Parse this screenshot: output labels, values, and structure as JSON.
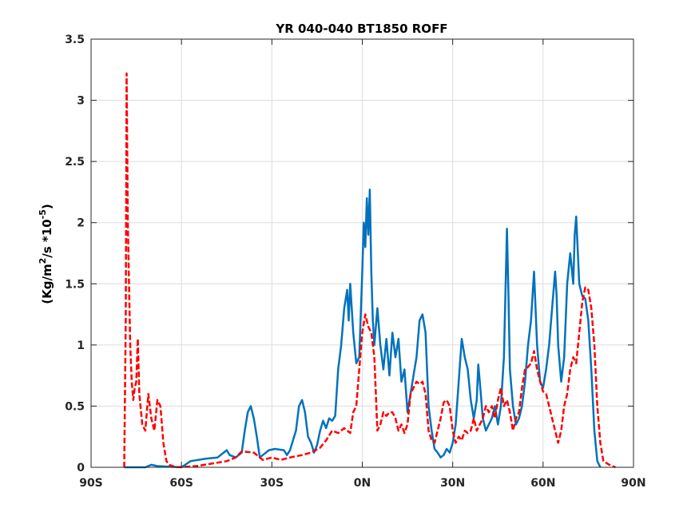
{
  "chart_data": {
    "type": "line",
    "title": "YR 040-040 BT1850 ROFF",
    "ylabel": {
      "pre": "(Kg/m",
      "sup1": "2",
      "mid": "/s   *10",
      "sup2": "-5",
      "post": ")"
    },
    "xlabel": "",
    "xlim": [
      -90,
      90
    ],
    "ylim": [
      0,
      3.5
    ],
    "x_ticks": [
      -90,
      -60,
      -30,
      0,
      30,
      60,
      90
    ],
    "x_tick_labels": [
      "90S",
      "60S",
      "30S",
      "0N",
      "30N",
      "60N",
      "90N"
    ],
    "y_ticks": [
      0,
      0.5,
      1,
      1.5,
      2,
      2.5,
      3,
      3.5
    ],
    "y_tick_labels": [
      "0",
      "0.5",
      "1",
      "1.5",
      "2",
      "2.5",
      "3",
      "3.5"
    ],
    "grid": true,
    "colors": {
      "blue": "#0072BD",
      "red": "#FF0000",
      "grid": "#dcdcdc",
      "axis": "#262626"
    },
    "series": [
      {
        "style": "solid",
        "color": "#0072BD",
        "points": [
          [
            -79,
            0
          ],
          [
            -72,
            0
          ],
          [
            -70,
            0.02
          ],
          [
            -68,
            0.01
          ],
          [
            -60,
            0
          ],
          [
            -57,
            0.05
          ],
          [
            -52,
            0.07
          ],
          [
            -48,
            0.08
          ],
          [
            -46,
            0.12
          ],
          [
            -45,
            0.14
          ],
          [
            -44,
            0.1
          ],
          [
            -42,
            0.08
          ],
          [
            -40,
            0.12
          ],
          [
            -39,
            0.3
          ],
          [
            -38,
            0.45
          ],
          [
            -37,
            0.5
          ],
          [
            -36,
            0.4
          ],
          [
            -35,
            0.25
          ],
          [
            -34,
            0.08
          ],
          [
            -33,
            0.1
          ],
          [
            -31,
            0.14
          ],
          [
            -29,
            0.15
          ],
          [
            -26,
            0.14
          ],
          [
            -25,
            0.1
          ],
          [
            -24,
            0.14
          ],
          [
            -22,
            0.3
          ],
          [
            -21,
            0.5
          ],
          [
            -20,
            0.55
          ],
          [
            -19,
            0.45
          ],
          [
            -18,
            0.25
          ],
          [
            -17,
            0.2
          ],
          [
            -16,
            0.12
          ],
          [
            -15,
            0.18
          ],
          [
            -14,
            0.3
          ],
          [
            -13,
            0.38
          ],
          [
            -12,
            0.32
          ],
          [
            -11,
            0.4
          ],
          [
            -10,
            0.38
          ],
          [
            -9,
            0.42
          ],
          [
            -8,
            0.8
          ],
          [
            -7,
            1.0
          ],
          [
            -6,
            1.3
          ],
          [
            -5,
            1.45
          ],
          [
            -4.5,
            1.2
          ],
          [
            -4,
            1.5
          ],
          [
            -3,
            1.1
          ],
          [
            -2,
            0.85
          ],
          [
            -1,
            0.9
          ],
          [
            0,
            1.6
          ],
          [
            0.5,
            2.0
          ],
          [
            1,
            1.8
          ],
          [
            1.5,
            2.2
          ],
          [
            2,
            1.9
          ],
          [
            2.5,
            2.27
          ],
          [
            3,
            1.6
          ],
          [
            3.5,
            1.2
          ],
          [
            4,
            1.0
          ],
          [
            5,
            1.3
          ],
          [
            6,
            1.0
          ],
          [
            7,
            0.8
          ],
          [
            8,
            1.05
          ],
          [
            9,
            0.75
          ],
          [
            10,
            1.1
          ],
          [
            11,
            0.9
          ],
          [
            12,
            1.05
          ],
          [
            13,
            0.7
          ],
          [
            14,
            0.8
          ],
          [
            15,
            0.45
          ],
          [
            16,
            0.6
          ],
          [
            17,
            0.75
          ],
          [
            18,
            0.9
          ],
          [
            19,
            1.2
          ],
          [
            20,
            1.25
          ],
          [
            21,
            1.1
          ],
          [
            22,
            0.5
          ],
          [
            23,
            0.3
          ],
          [
            24,
            0.15
          ],
          [
            25,
            0.12
          ],
          [
            26,
            0.08
          ],
          [
            27,
            0.1
          ],
          [
            28,
            0.15
          ],
          [
            29,
            0.12
          ],
          [
            30,
            0.2
          ],
          [
            31,
            0.35
          ],
          [
            32,
            0.7
          ],
          [
            33,
            1.05
          ],
          [
            34,
            0.9
          ],
          [
            35,
            0.8
          ],
          [
            36,
            0.55
          ],
          [
            37,
            0.4
          ],
          [
            38,
            0.55
          ],
          [
            38.5,
            0.84
          ],
          [
            39,
            0.7
          ],
          [
            40,
            0.4
          ],
          [
            41,
            0.3
          ],
          [
            42,
            0.35
          ],
          [
            43,
            0.4
          ],
          [
            44,
            0.5
          ],
          [
            45,
            0.35
          ],
          [
            46,
            0.5
          ],
          [
            47,
            0.9
          ],
          [
            48,
            1.95
          ],
          [
            48.5,
            1.4
          ],
          [
            49,
            0.8
          ],
          [
            50,
            0.5
          ],
          [
            51,
            0.35
          ],
          [
            52,
            0.4
          ],
          [
            53,
            0.5
          ],
          [
            54,
            0.7
          ],
          [
            55,
            1.0
          ],
          [
            56,
            1.2
          ],
          [
            57,
            1.6
          ],
          [
            58,
            1.0
          ],
          [
            59,
            0.7
          ],
          [
            60,
            0.65
          ],
          [
            61,
            0.8
          ],
          [
            62,
            1.0
          ],
          [
            63,
            1.3
          ],
          [
            64,
            1.6
          ],
          [
            64.5,
            1.4
          ],
          [
            65,
            1.0
          ],
          [
            66,
            0.7
          ],
          [
            67,
            0.9
          ],
          [
            68,
            1.5
          ],
          [
            69,
            1.75
          ],
          [
            70,
            1.5
          ],
          [
            70.5,
            1.9
          ],
          [
            71,
            2.05
          ],
          [
            72,
            1.5
          ],
          [
            73,
            1.4
          ],
          [
            74,
            1.38
          ],
          [
            75,
            1.2
          ],
          [
            76,
            0.8
          ],
          [
            77,
            0.3
          ],
          [
            78,
            0.05
          ],
          [
            79,
            0
          ]
        ]
      },
      {
        "style": "dashed",
        "color": "#FF0000",
        "points": [
          [
            -79,
            0
          ],
          [
            -78.5,
            1.2
          ],
          [
            -78.2,
            3.22
          ],
          [
            -77.8,
            2.0
          ],
          [
            -77.5,
            1.6
          ],
          [
            -77,
            1.0
          ],
          [
            -76.5,
            0.7
          ],
          [
            -76,
            0.55
          ],
          [
            -75.5,
            0.65
          ],
          [
            -75,
            0.7
          ],
          [
            -74.5,
            1.05
          ],
          [
            -74,
            0.6
          ],
          [
            -73,
            0.35
          ],
          [
            -72,
            0.3
          ],
          [
            -71,
            0.6
          ],
          [
            -70,
            0.4
          ],
          [
            -69,
            0.3
          ],
          [
            -68,
            0.55
          ],
          [
            -67,
            0.5
          ],
          [
            -66,
            0.2
          ],
          [
            -65,
            0.05
          ],
          [
            -64,
            0.02
          ],
          [
            -62,
            0
          ],
          [
            -55,
            0.01
          ],
          [
            -50,
            0.03
          ],
          [
            -45,
            0.05
          ],
          [
            -42,
            0.08
          ],
          [
            -40,
            0.13
          ],
          [
            -36,
            0.12
          ],
          [
            -33,
            0.06
          ],
          [
            -30,
            0.08
          ],
          [
            -27,
            0.06
          ],
          [
            -24,
            0.08
          ],
          [
            -20,
            0.1
          ],
          [
            -17,
            0.12
          ],
          [
            -14,
            0.16
          ],
          [
            -12,
            0.22
          ],
          [
            -10,
            0.3
          ],
          [
            -8,
            0.28
          ],
          [
            -6,
            0.32
          ],
          [
            -4,
            0.28
          ],
          [
            -3,
            0.45
          ],
          [
            -2,
            0.5
          ],
          [
            -1,
            0.8
          ],
          [
            0,
            1.1
          ],
          [
            1,
            1.25
          ],
          [
            2,
            1.15
          ],
          [
            3,
            1.1
          ],
          [
            4,
            0.9
          ],
          [
            5,
            0.3
          ],
          [
            6,
            0.35
          ],
          [
            7,
            0.45
          ],
          [
            8,
            0.42
          ],
          [
            9,
            0.45
          ],
          [
            10,
            0.45
          ],
          [
            11,
            0.4
          ],
          [
            12,
            0.3
          ],
          [
            13,
            0.35
          ],
          [
            14,
            0.28
          ],
          [
            15,
            0.35
          ],
          [
            16,
            0.6
          ],
          [
            17,
            0.65
          ],
          [
            18,
            0.7
          ],
          [
            19,
            0.68
          ],
          [
            20,
            0.7
          ],
          [
            21,
            0.6
          ],
          [
            22,
            0.3
          ],
          [
            23,
            0.22
          ],
          [
            24,
            0.2
          ],
          [
            25,
            0.3
          ],
          [
            26,
            0.4
          ],
          [
            27,
            0.53
          ],
          [
            28,
            0.55
          ],
          [
            29,
            0.5
          ],
          [
            30,
            0.3
          ],
          [
            31,
            0.2
          ],
          [
            32,
            0.25
          ],
          [
            33,
            0.22
          ],
          [
            34,
            0.3
          ],
          [
            35,
            0.28
          ],
          [
            36,
            0.3
          ],
          [
            37,
            0.4
          ],
          [
            38,
            0.3
          ],
          [
            39,
            0.35
          ],
          [
            40,
            0.4
          ],
          [
            41,
            0.5
          ],
          [
            42,
            0.45
          ],
          [
            43,
            0.5
          ],
          [
            44,
            0.4
          ],
          [
            45,
            0.55
          ],
          [
            46,
            0.65
          ],
          [
            47,
            0.5
          ],
          [
            48,
            0.55
          ],
          [
            49,
            0.45
          ],
          [
            50,
            0.3
          ],
          [
            51,
            0.4
          ],
          [
            52,
            0.45
          ],
          [
            53,
            0.65
          ],
          [
            54,
            0.8
          ],
          [
            55,
            0.82
          ],
          [
            56,
            0.85
          ],
          [
            57,
            0.95
          ],
          [
            58,
            0.8
          ],
          [
            59,
            0.7
          ],
          [
            60,
            0.62
          ],
          [
            61,
            0.6
          ],
          [
            62,
            0.5
          ],
          [
            63,
            0.4
          ],
          [
            64,
            0.3
          ],
          [
            65,
            0.2
          ],
          [
            66,
            0.3
          ],
          [
            67,
            0.5
          ],
          [
            68,
            0.6
          ],
          [
            69,
            0.8
          ],
          [
            70,
            0.9
          ],
          [
            71,
            0.85
          ],
          [
            72,
            1.1
          ],
          [
            73,
            1.35
          ],
          [
            74,
            1.47
          ],
          [
            75,
            1.45
          ],
          [
            76,
            1.3
          ],
          [
            77,
            1.0
          ],
          [
            78,
            0.5
          ],
          [
            79,
            0.2
          ],
          [
            80,
            0.05
          ],
          [
            82,
            0.02
          ],
          [
            84,
            0
          ]
        ]
      }
    ]
  }
}
